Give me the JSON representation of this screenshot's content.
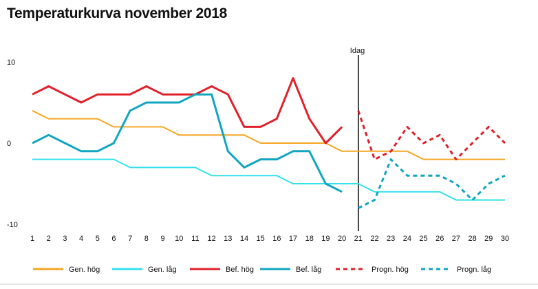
{
  "chart_data": {
    "type": "line",
    "title": "Temperaturkurva november 2018",
    "x": [
      1,
      2,
      3,
      4,
      5,
      6,
      7,
      8,
      9,
      10,
      11,
      12,
      13,
      14,
      15,
      16,
      17,
      18,
      19,
      20,
      21,
      22,
      23,
      24,
      25,
      26,
      27,
      28,
      29,
      30
    ],
    "ylim": [
      -10,
      10
    ],
    "yticks": [
      10,
      0,
      -10
    ],
    "grid": false,
    "legend_position": "bottom",
    "today_marker": {
      "x": 21,
      "label": "Idag"
    },
    "series": [
      {
        "name": "Gen. hög",
        "color": "#f5a623",
        "style": "solid",
        "x": [
          1,
          2,
          3,
          4,
          5,
          6,
          7,
          8,
          9,
          10,
          11,
          12,
          13,
          14,
          15,
          16,
          17,
          18,
          19,
          20,
          21,
          22,
          23,
          24,
          25,
          26,
          27,
          28,
          29,
          30
        ],
        "values": [
          4,
          3,
          3,
          3,
          3,
          2,
          2,
          2,
          2,
          1,
          1,
          1,
          1,
          1,
          0,
          0,
          0,
          0,
          0,
          -1,
          -1,
          -1,
          -1,
          -1,
          -2,
          -2,
          -2,
          -2,
          -2,
          -2
        ]
      },
      {
        "name": "Gen. låg",
        "color": "#33e0ee",
        "style": "solid",
        "x": [
          1,
          2,
          3,
          4,
          5,
          6,
          7,
          8,
          9,
          10,
          11,
          12,
          13,
          14,
          15,
          16,
          17,
          18,
          19,
          20,
          21,
          22,
          23,
          24,
          25,
          26,
          27,
          28,
          29,
          30
        ],
        "values": [
          -2,
          -2,
          -2,
          -2,
          -2,
          -2,
          -3,
          -3,
          -3,
          -3,
          -3,
          -4,
          -4,
          -4,
          -4,
          -4,
          -5,
          -5,
          -5,
          -5,
          -5,
          -6,
          -6,
          -6,
          -6,
          -6,
          -7,
          -7,
          -7,
          -7
        ]
      },
      {
        "name": "Bef. hög",
        "color": "#e0202a",
        "style": "solid",
        "x": [
          1,
          2,
          3,
          4,
          5,
          6,
          7,
          8,
          9,
          10,
          11,
          12,
          13,
          14,
          15,
          16,
          17,
          18,
          19,
          20
        ],
        "values": [
          6,
          7,
          6,
          5,
          6,
          6,
          6,
          7,
          6,
          6,
          6,
          7,
          6,
          2,
          2,
          3,
          8,
          3,
          0,
          2
        ]
      },
      {
        "name": "Bef. låg",
        "color": "#10a6bf",
        "style": "solid",
        "x": [
          1,
          2,
          3,
          4,
          5,
          6,
          7,
          8,
          9,
          10,
          11,
          12,
          13,
          14,
          15,
          16,
          17,
          18,
          19,
          20
        ],
        "values": [
          0,
          1,
          0,
          -1,
          -1,
          0,
          4,
          5,
          5,
          5,
          6,
          6,
          -1,
          -3,
          -2,
          -2,
          -1,
          -1,
          -5,
          -6
        ]
      },
      {
        "name": "Progn. hög",
        "color": "#e0202a",
        "style": "dashed",
        "x": [
          21,
          22,
          23,
          24,
          25,
          26,
          27,
          28,
          29,
          30
        ],
        "values": [
          4,
          -2,
          -1,
          2,
          0,
          1,
          -2,
          0,
          2,
          0
        ]
      },
      {
        "name": "Progn. låg",
        "color": "#10a6bf",
        "style": "dashed",
        "x": [
          21,
          22,
          23,
          24,
          25,
          26,
          27,
          28,
          29,
          30
        ],
        "values": [
          -8,
          -7,
          -2,
          -4,
          -4,
          -4,
          -5,
          -7,
          -5,
          -4
        ]
      }
    ]
  }
}
